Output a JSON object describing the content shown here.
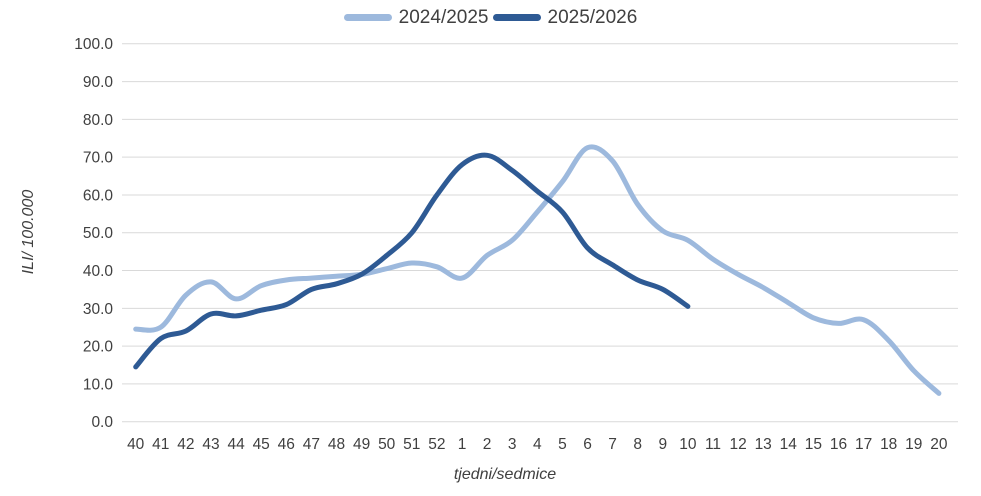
{
  "chart_data": {
    "type": "line",
    "title": "",
    "xlabel": "tjedni/sedmice",
    "ylabel": "ILI/ 100.000",
    "ylim": [
      0,
      100
    ],
    "ytick_step": 10,
    "ytick_format_decimals": 1,
    "grid": "horizontal",
    "legend_position": "top-center",
    "gridline_color": "#d9d9d9",
    "text_color": "#404040",
    "categories": [
      "40",
      "41",
      "42",
      "43",
      "44",
      "45",
      "46",
      "47",
      "48",
      "49",
      "50",
      "51",
      "52",
      "1",
      "2",
      "3",
      "4",
      "5",
      "6",
      "7",
      "8",
      "9",
      "10",
      "11",
      "12",
      "13",
      "14",
      "15",
      "16",
      "17",
      "18",
      "19",
      "20"
    ],
    "series": [
      {
        "name": "2024/2025",
        "color": "#9DB9DD",
        "values": [
          24.5,
          25,
          33.5,
          37,
          32.5,
          36,
          37.5,
          38,
          38.5,
          39,
          40.5,
          42,
          41,
          38,
          44,
          48,
          55.5,
          63.5,
          72.5,
          69,
          57.5,
          50.5,
          48,
          43,
          39,
          35.5,
          31.5,
          27.5,
          26,
          27,
          21.5,
          13.5,
          7.5
        ]
      },
      {
        "name": "2025/2026",
        "color": "#2E5A94",
        "values": [
          14.5,
          22,
          24,
          28.5,
          28,
          29.5,
          31,
          35,
          36.5,
          39,
          44,
          50,
          60,
          68,
          70.5,
          66.5,
          61,
          55.5,
          46,
          41.5,
          37.5,
          35,
          30.5
        ]
      }
    ]
  }
}
